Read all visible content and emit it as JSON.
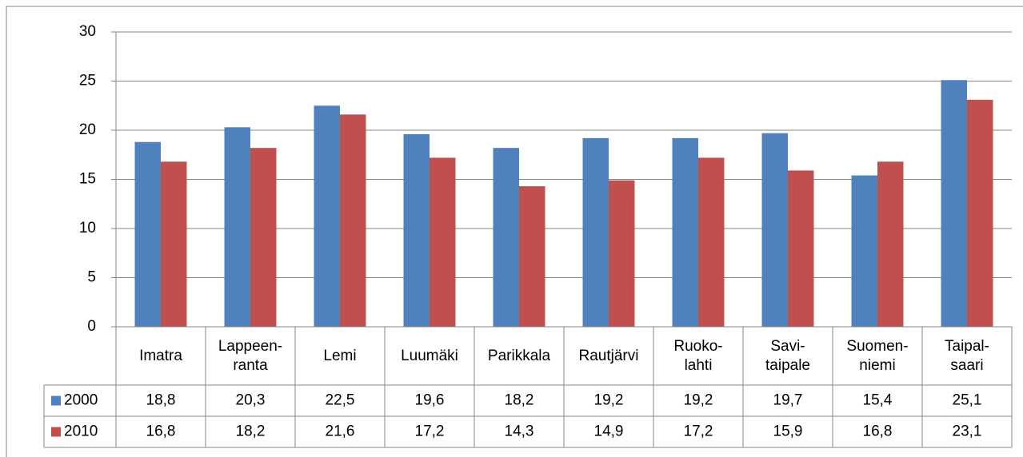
{
  "chart_data": {
    "type": "bar",
    "categories": [
      "Imatra",
      "Lappeen-\nranta",
      "Lemi",
      "Luumäki",
      "Parikkala",
      "Rautjärvi",
      "Ruoko-\nlahti",
      "Savi-\ntaipale",
      "Suomen-\nniemi",
      "Taipal-\nsaari"
    ],
    "series": [
      {
        "name": "2000",
        "color": "#4f81bd",
        "values": [
          18.8,
          20.3,
          22.5,
          19.6,
          18.2,
          19.2,
          19.2,
          19.7,
          15.4,
          25.1
        ],
        "value_labels": [
          "18,8",
          "20,3",
          "22,5",
          "19,6",
          "18,2",
          "19,2",
          "19,2",
          "19,7",
          "15,4",
          "25,1"
        ]
      },
      {
        "name": "2010",
        "color": "#c0504d",
        "values": [
          16.8,
          18.2,
          21.6,
          17.2,
          14.3,
          14.9,
          17.2,
          15.9,
          16.8,
          23.1
        ],
        "value_labels": [
          "16,8",
          "18,2",
          "21,6",
          "17,2",
          "14,3",
          "14,9",
          "17,2",
          "15,9",
          "16,8",
          "23,1"
        ]
      }
    ],
    "ylim": [
      0,
      30
    ],
    "yticks": [
      0,
      5,
      10,
      15,
      20,
      25,
      30
    ],
    "grid": true,
    "data_table": true
  }
}
